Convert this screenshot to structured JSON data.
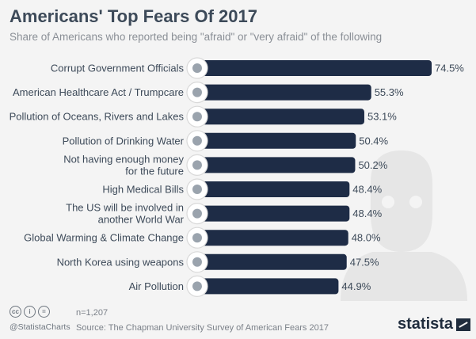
{
  "header": {
    "title": "Americans' Top Fears Of 2017",
    "subtitle": "Share of Americans who reported being \"afraid\" or \"very afraid\" of the following"
  },
  "chart_data": {
    "type": "bar",
    "orientation": "horizontal",
    "categories": [
      [
        "Corrupt Government Officials"
      ],
      [
        "American Healthcare Act / Trumpcare"
      ],
      [
        "Pollution of Oceans, Rivers and Lakes"
      ],
      [
        "Pollution of Drinking Water"
      ],
      [
        "Not having enough money",
        "for the future"
      ],
      [
        "High Medical Bills"
      ],
      [
        "The US will be involved in",
        "another World War"
      ],
      [
        "Global Warming & Climate Change"
      ],
      [
        "North Korea using weapons"
      ],
      [
        "Air Pollution"
      ]
    ],
    "values": [
      74.5,
      55.3,
      53.1,
      50.4,
      50.2,
      48.4,
      48.4,
      48.0,
      47.5,
      44.9
    ],
    "value_labels": [
      "74.5%",
      "55.3%",
      "53.1%",
      "50.4%",
      "50.2%",
      "48.4%",
      "48.4%",
      "48.0%",
      "47.5%",
      "44.9%"
    ],
    "icons": [
      "government-building-icon",
      "hospital-icon",
      "water-pollution-icon",
      "water-glass-icon",
      "wallet-icon",
      "medical-bill-icon",
      "flag-bomb-icon",
      "globe-thermometer-icon",
      "explosion-cloud-icon",
      "air-icon"
    ],
    "bar_color": "#1e2c46",
    "grid": false
  },
  "footer": {
    "cc_icons": [
      "cc",
      "i",
      "="
    ],
    "handle": "@StatistaCharts",
    "n_note": "n=1,207",
    "source": "Source: The Chapman University Survey of American Fears 2017",
    "brand": "statista"
  }
}
